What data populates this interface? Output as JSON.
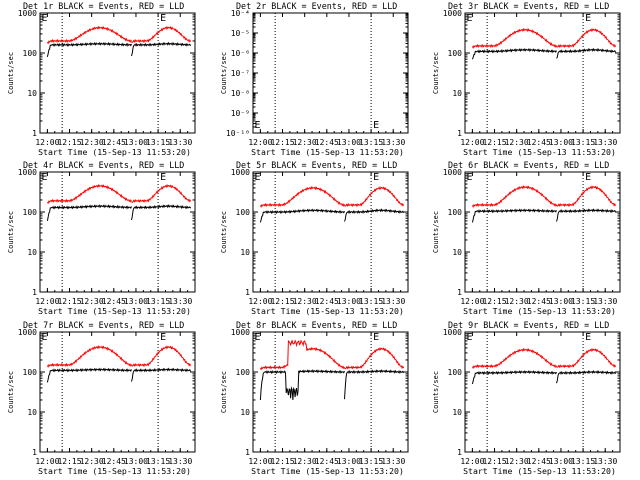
{
  "figure": {
    "xlabel": "Start Time (15-Sep-13 11:53:20)",
    "ylabel": "Counts/sec",
    "x_tick_labels": [
      "12:00",
      "12:15",
      "12:30",
      "12:45",
      "13:00",
      "13:15",
      "13:30"
    ],
    "marker_label": "E",
    "colors": {
      "events": "#000000",
      "lld": "#ff0000",
      "axes": "#000000",
      "background": "#ffffff"
    }
  },
  "chart_data": [
    {
      "type": "line",
      "title": "Det 1r BLACK = Events, RED = LLD",
      "yscale": "log",
      "ylim": [
        1,
        1000
      ],
      "y_tick_labels": [
        "1",
        "10",
        "100",
        "1000"
      ],
      "xlim_minutes": [
        -5,
        100
      ],
      "vertical_lines_minutes": [
        10,
        75
      ],
      "marker_minutes": [
        -4,
        75
      ],
      "series": [
        {
          "name": "Events",
          "color": "#000000",
          "flat": 160,
          "bump_peak": 170,
          "dip_floor": 80,
          "x_start": [
            0,
            57
          ],
          "x_end": [
            57,
            97
          ]
        },
        {
          "name": "LLD",
          "color": "#ff0000",
          "flat": 200,
          "bump_peak": 430,
          "dip_floor": 180,
          "x_start": [
            0,
            57
          ],
          "x_end": [
            57,
            97
          ]
        }
      ]
    },
    {
      "type": "line",
      "title": "Det 2r BLACK = Events, RED = LLD",
      "yscale": "log",
      "ylim": [
        1e-10,
        0.0001
      ],
      "y_tick_labels": [
        "10⁻⁴",
        "10⁻⁵",
        "10⁻⁶",
        "10⁻⁷",
        "10⁻⁸",
        "10⁻⁹",
        "10⁻¹⁰"
      ],
      "xlim_minutes": [
        -5,
        100
      ],
      "vertical_lines_minutes": [
        10,
        75
      ],
      "marker_minutes": [
        -4,
        75
      ],
      "series": []
    },
    {
      "type": "line",
      "title": "Det 3r BLACK = Events, RED = LLD",
      "yscale": "log",
      "ylim": [
        1,
        1000
      ],
      "y_tick_labels": [
        "1",
        "10",
        "100",
        "1000"
      ],
      "xlim_minutes": [
        -5,
        100
      ],
      "vertical_lines_minutes": [
        10,
        75
      ],
      "marker_minutes": [
        -4,
        75
      ],
      "series": [
        {
          "name": "Events",
          "color": "#000000",
          "flat": 110,
          "bump_peak": 120,
          "dip_floor": 70,
          "x_start": [
            0,
            57
          ],
          "x_end": [
            57,
            97
          ]
        },
        {
          "name": "LLD",
          "color": "#ff0000",
          "flat": 150,
          "bump_peak": 380,
          "dip_floor": 140,
          "x_start": [
            0,
            57
          ],
          "x_end": [
            57,
            97
          ]
        }
      ]
    },
    {
      "type": "line",
      "title": "Det 4r BLACK = Events, RED = LLD",
      "yscale": "log",
      "ylim": [
        1,
        1000
      ],
      "y_tick_labels": [
        "1",
        "10",
        "100",
        "1000"
      ],
      "xlim_minutes": [
        -5,
        100
      ],
      "vertical_lines_minutes": [
        10,
        75
      ],
      "marker_minutes": [
        -4,
        75
      ],
      "series": [
        {
          "name": "Events",
          "color": "#000000",
          "flat": 130,
          "bump_peak": 140,
          "dip_floor": 60,
          "x_start": [
            0,
            57
          ],
          "x_end": [
            57,
            97
          ]
        },
        {
          "name": "LLD",
          "color": "#ff0000",
          "flat": 190,
          "bump_peak": 450,
          "dip_floor": 170,
          "x_start": [
            0,
            57
          ],
          "x_end": [
            57,
            97
          ]
        }
      ]
    },
    {
      "type": "line",
      "title": "Det 5r BLACK = Events, RED = LLD",
      "yscale": "log",
      "ylim": [
        1,
        1000
      ],
      "y_tick_labels": [
        "1",
        "10",
        "100",
        "1000"
      ],
      "xlim_minutes": [
        -5,
        100
      ],
      "vertical_lines_minutes": [
        10,
        75
      ],
      "marker_minutes": [
        -4,
        75
      ],
      "series": [
        {
          "name": "Events",
          "color": "#000000",
          "flat": 100,
          "bump_peak": 110,
          "dip_floor": 55,
          "x_start": [
            0,
            57
          ],
          "x_end": [
            57,
            97
          ]
        },
        {
          "name": "LLD",
          "color": "#ff0000",
          "flat": 150,
          "bump_peak": 400,
          "dip_floor": 140,
          "x_start": [
            0,
            57
          ],
          "x_end": [
            57,
            97
          ]
        }
      ]
    },
    {
      "type": "line",
      "title": "Det 6r BLACK = Events, RED = LLD",
      "yscale": "log",
      "ylim": [
        1,
        1000
      ],
      "y_tick_labels": [
        "1",
        "10",
        "100",
        "1000"
      ],
      "xlim_minutes": [
        -5,
        100
      ],
      "vertical_lines_minutes": [
        10,
        75
      ],
      "marker_minutes": [
        -4,
        75
      ],
      "series": [
        {
          "name": "Events",
          "color": "#000000",
          "flat": 105,
          "bump_peak": 110,
          "dip_floor": 55,
          "x_start": [
            0,
            57
          ],
          "x_end": [
            57,
            97
          ]
        },
        {
          "name": "LLD",
          "color": "#ff0000",
          "flat": 150,
          "bump_peak": 420,
          "dip_floor": 140,
          "x_start": [
            0,
            57
          ],
          "x_end": [
            57,
            97
          ]
        }
      ]
    },
    {
      "type": "line",
      "title": "Det 7r BLACK = Events, RED = LLD",
      "yscale": "log",
      "ylim": [
        1,
        1000
      ],
      "y_tick_labels": [
        "1",
        "10",
        "100",
        "1000"
      ],
      "xlim_minutes": [
        -5,
        100
      ],
      "vertical_lines_minutes": [
        10,
        75
      ],
      "marker_minutes": [
        -4,
        75
      ],
      "series": [
        {
          "name": "Events",
          "color": "#000000",
          "flat": 110,
          "bump_peak": 115,
          "dip_floor": 55,
          "x_start": [
            0,
            57
          ],
          "x_end": [
            57,
            97
          ]
        },
        {
          "name": "LLD",
          "color": "#ff0000",
          "flat": 150,
          "bump_peak": 420,
          "dip_floor": 140,
          "x_start": [
            0,
            57
          ],
          "x_end": [
            57,
            97
          ]
        }
      ]
    },
    {
      "type": "line",
      "title": "Det 8r BLACK = Events, RED = LLD",
      "yscale": "log",
      "ylim": [
        1,
        1000
      ],
      "y_tick_labels": [
        "1",
        "10",
        "100",
        "1000"
      ],
      "xlim_minutes": [
        -5,
        100
      ],
      "vertical_lines_minutes": [
        10,
        75
      ],
      "marker_minutes": [
        -4,
        75
      ],
      "series": [
        {
          "name": "Events",
          "color": "#000000",
          "flat": 100,
          "bump_peak": 105,
          "dip_floor": 20,
          "x_start": [
            0,
            57
          ],
          "x_end": [
            57,
            97
          ]
        },
        {
          "name": "LLD",
          "color": "#ff0000",
          "flat": 130,
          "bump_peak": 380,
          "dip_floor": 120,
          "spike_peak": 600,
          "x_start": [
            0,
            57
          ],
          "x_end": [
            57,
            97
          ]
        }
      ]
    },
    {
      "type": "line",
      "title": "Det 9r BLACK = Events, RED = LLD",
      "yscale": "log",
      "ylim": [
        1,
        1000
      ],
      "y_tick_labels": [
        "1",
        "10",
        "100",
        "1000"
      ],
      "xlim_minutes": [
        -5,
        100
      ],
      "vertical_lines_minutes": [
        10,
        75
      ],
      "marker_minutes": [
        -4,
        75
      ],
      "series": [
        {
          "name": "Events",
          "color": "#000000",
          "flat": 95,
          "bump_peak": 100,
          "dip_floor": 50,
          "x_start": [
            0,
            57
          ],
          "x_end": [
            57,
            97
          ]
        },
        {
          "name": "LLD",
          "color": "#ff0000",
          "flat": 140,
          "bump_peak": 360,
          "dip_floor": 130,
          "x_start": [
            0,
            57
          ],
          "x_end": [
            57,
            97
          ]
        }
      ]
    }
  ]
}
